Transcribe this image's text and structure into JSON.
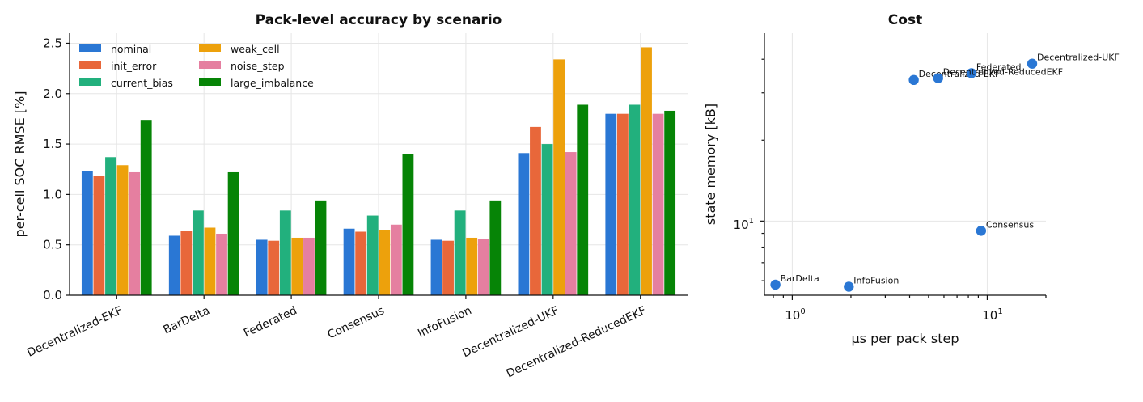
{
  "bar_chart": {
    "title": "Pack-level accuracy by scenario",
    "ylabel": "per-cell SOC RMSE [%]",
    "ytick_labels": [
      "0.0",
      "0.5",
      "1.0",
      "1.5",
      "2.0",
      "2.5"
    ],
    "legend_entries": [
      "nominal",
      "init_error",
      "current_bias",
      "weak_cell",
      "noise_step",
      "large_imbalance"
    ],
    "categories": [
      "Decentralized-EKF",
      "BarDelta",
      "Federated",
      "Consensus",
      "InfoFusion",
      "Decentralized-UKF",
      "Decentralized-ReducedEKF"
    ]
  },
  "scatter_chart": {
    "title": "Cost",
    "xlabel": "μs per pack step",
    "ylabel": "state memory [kB]",
    "x_base": "10",
    "x_exps": [
      "0",
      "1"
    ],
    "y_base": "10",
    "y_exps": [
      "1"
    ]
  },
  "chart_data": [
    {
      "type": "bar",
      "title": "Pack-level accuracy by scenario",
      "xlabel": "",
      "ylabel": "per-cell SOC RMSE [%]",
      "ylim": [
        0,
        2.6
      ],
      "yticks": [
        0,
        0.5,
        1.0,
        1.5,
        2.0,
        2.5
      ],
      "grid": true,
      "legend": "top-left, 2 columns",
      "categories": [
        "Decentralized-EKF",
        "BarDelta",
        "Federated",
        "Consensus",
        "InfoFusion",
        "Decentralized-UKF",
        "Decentralized-ReducedEKF"
      ],
      "series": [
        {
          "name": "nominal",
          "color": "#2a77d4",
          "values": [
            1.23,
            0.59,
            0.55,
            0.66,
            0.55,
            1.41,
            1.8
          ]
        },
        {
          "name": "init_error",
          "color": "#e8673a",
          "values": [
            1.18,
            0.64,
            0.54,
            0.63,
            0.54,
            1.67,
            1.8
          ]
        },
        {
          "name": "current_bias",
          "color": "#22b07d",
          "values": [
            1.37,
            0.84,
            0.84,
            0.79,
            0.84,
            1.5,
            1.89
          ]
        },
        {
          "name": "weak_cell",
          "color": "#eda10c",
          "values": [
            1.29,
            0.67,
            0.57,
            0.65,
            0.57,
            2.34,
            2.46
          ]
        },
        {
          "name": "noise_step",
          "color": "#e57fa0",
          "values": [
            1.22,
            0.61,
            0.57,
            0.7,
            0.56,
            1.42,
            1.8
          ]
        },
        {
          "name": "large_imbalance",
          "color": "#068406",
          "values": [
            1.74,
            1.22,
            0.94,
            1.4,
            0.94,
            1.89,
            1.83
          ]
        }
      ]
    },
    {
      "type": "scatter",
      "title": "Cost",
      "xlabel": "μs per pack step",
      "ylabel": "state memory [kB]",
      "xscale": "log",
      "yscale": "log",
      "xlim": [
        0.72,
        20
      ],
      "ylim": [
        5.3,
        50
      ],
      "grid": true,
      "marker_color": "#2a77d4",
      "points": [
        {
          "label": "Decentralized-EKF",
          "x": 4.2,
          "y": 33.5
        },
        {
          "label": "BarDelta",
          "x": 0.82,
          "y": 5.8
        },
        {
          "label": "Federated",
          "x": 8.3,
          "y": 35.5
        },
        {
          "label": "Consensus",
          "x": 9.3,
          "y": 9.2
        },
        {
          "label": "InfoFusion",
          "x": 1.95,
          "y": 5.7
        },
        {
          "label": "Decentralized-UKF",
          "x": 17.0,
          "y": 38.5
        },
        {
          "label": "Decentralized-ReducedEKF",
          "x": 5.6,
          "y": 34.0
        }
      ]
    }
  ]
}
